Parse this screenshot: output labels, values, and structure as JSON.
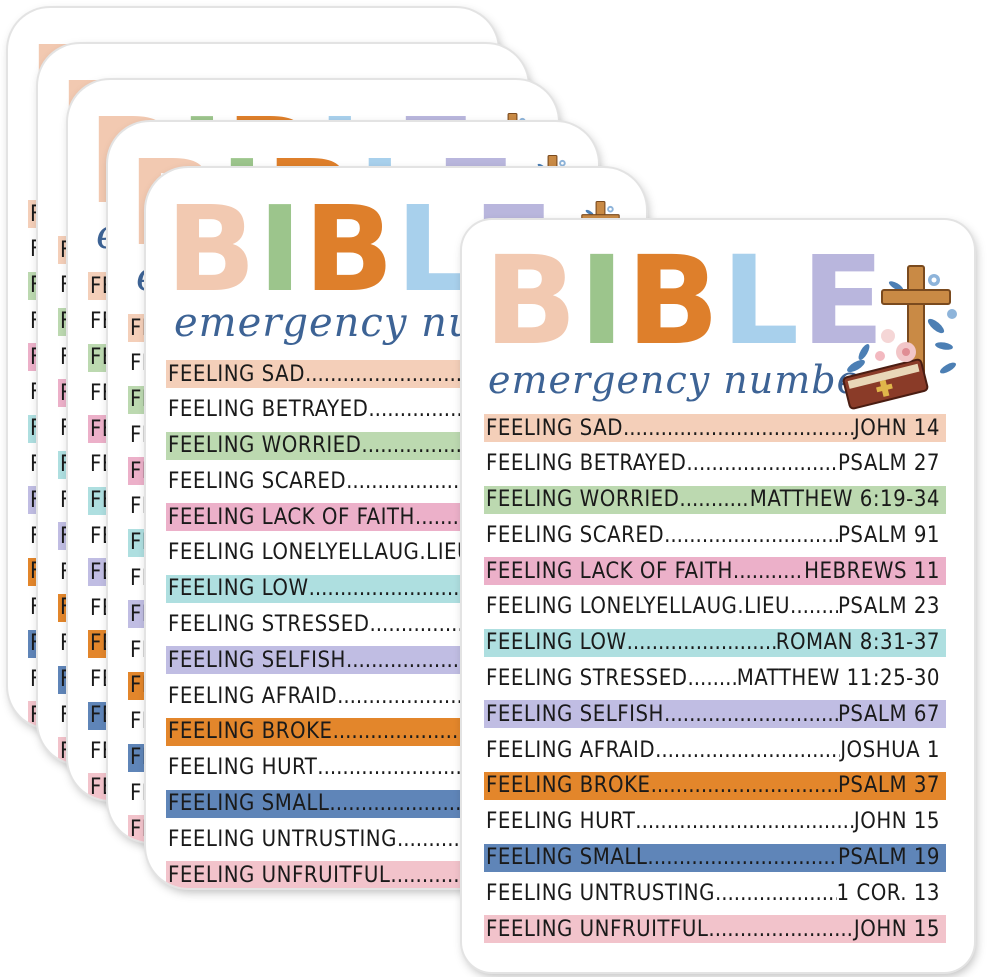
{
  "title_letters": [
    {
      "char": "B",
      "color": "#f2c9b1"
    },
    {
      "char": "I",
      "color": "#9cc58c"
    },
    {
      "char": "B",
      "color": "#de7f2b"
    },
    {
      "char": "L",
      "color": "#a8d0ec"
    },
    {
      "char": "E",
      "color": "#b9b6dd"
    }
  ],
  "subtitle": "emergency number",
  "rows": [
    {
      "feeling": "FEELING SAD",
      "verse": " JOHN 14",
      "color": "#f4cfb9"
    },
    {
      "feeling": "FEELING BETRAYED",
      "verse": "PSALM 27",
      "color": "#ffffff"
    },
    {
      "feeling": "FEELING WORRIED",
      "verse": "MATTHEW 6:19-34",
      "color": "#bcd9b0"
    },
    {
      "feeling": "FEELING SCARED",
      "verse": "PSALM 91",
      "color": "#ffffff"
    },
    {
      "feeling": "FEELING LACK OF FAITH",
      "verse": "HEBREWS 11",
      "color": "#ecb0c9"
    },
    {
      "feeling": "FEELING LONELYELLAUG.LIEU",
      "verse": "PSALM 23",
      "color": "#ffffff"
    },
    {
      "feeling": "FEELING LOW",
      "verse": "ROMAN 8:31-37",
      "color": "#aedfe0"
    },
    {
      "feeling": "FEELING STRESSED",
      "verse": "MATTHEW 11:25-30",
      "color": "#ffffff"
    },
    {
      "feeling": "FEELING SELFISH",
      "verse": "PSALM 67",
      "color": "#c0bde3"
    },
    {
      "feeling": "FEELING AFRAID",
      "verse": "JOSHUA 1",
      "color": "#ffffff"
    },
    {
      "feeling": "FEELING BROKE",
      "verse": "PSALM 37",
      "color": "#e3862b"
    },
    {
      "feeling": "FEELING HURT",
      "verse": "JOHN 15",
      "color": "#ffffff"
    },
    {
      "feeling": "FEELING SMALL",
      "verse": "PSALM 19",
      "color": "#5f85b8"
    },
    {
      "feeling": "FEELING UNTRUSTING",
      "verse": "1 COR. 13",
      "color": "#ffffff"
    },
    {
      "feeling": "FEELING UNFRUITFUL",
      "verse": "JOHN 15",
      "color": "#f2c3cb"
    }
  ],
  "stack_offsets": [
    "0",
    "1",
    "2",
    "3",
    "4"
  ],
  "emblem": "cross-with-bible-and-flowers-icon"
}
